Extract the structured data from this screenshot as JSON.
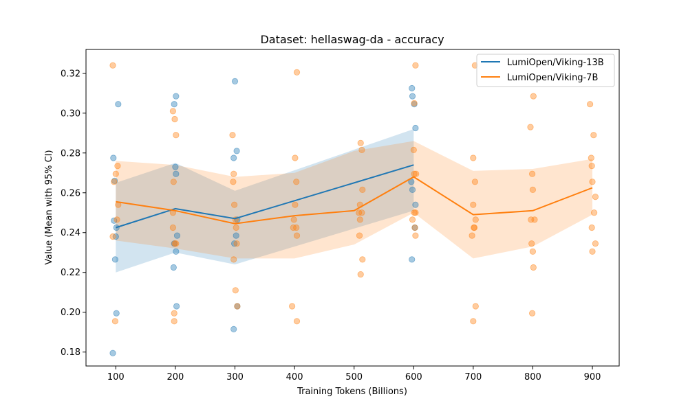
{
  "chart_data": {
    "type": "line",
    "title": "Dataset: hellaswag-da - accuracy",
    "xlabel": "Training Tokens (Billions)",
    "ylabel": "Value (Mean with 95% CI)",
    "xlim": [
      50,
      945
    ],
    "ylim": [
      0.173,
      0.332
    ],
    "xticks": [
      100,
      200,
      300,
      400,
      500,
      600,
      700,
      800,
      900
    ],
    "yticks": [
      0.18,
      0.2,
      0.22,
      0.24,
      0.26,
      0.28,
      0.3,
      0.32
    ],
    "grid": false,
    "legend": "top-right",
    "series": [
      {
        "name": "LumiOpen/Viking-13B",
        "color": "#1f77b4",
        "x": [
          100,
          200,
          300,
          600
        ],
        "mean": [
          0.2425,
          0.252,
          0.247,
          0.274
        ],
        "ci_low": [
          0.22,
          0.23,
          0.224,
          0.251
        ],
        "ci_high": [
          0.265,
          0.275,
          0.261,
          0.292
        ],
        "points": [
          [
            96,
            0.2775
          ],
          [
            98,
            0.266
          ],
          [
            97,
            0.246
          ],
          [
            100,
            0.238
          ],
          [
            101,
            0.2425
          ],
          [
            99,
            0.2265
          ],
          [
            101,
            0.1995
          ],
          [
            104,
            0.3045
          ],
          [
            95,
            0.1795
          ],
          [
            198,
            0.3045
          ],
          [
            201,
            0.3085
          ],
          [
            200,
            0.273
          ],
          [
            201,
            0.2695
          ],
          [
            203,
            0.2385
          ],
          [
            198,
            0.2345
          ],
          [
            201,
            0.2305
          ],
          [
            197,
            0.2225
          ],
          [
            202,
            0.203
          ],
          [
            300,
            0.316
          ],
          [
            303,
            0.281
          ],
          [
            298,
            0.2775
          ],
          [
            304,
            0.2465
          ],
          [
            302,
            0.2385
          ],
          [
            299,
            0.2345
          ],
          [
            304,
            0.203
          ],
          [
            298,
            0.1915
          ],
          [
            597,
            0.3125
          ],
          [
            598,
            0.3085
          ],
          [
            601,
            0.3045
          ],
          [
            603,
            0.2925
          ],
          [
            596,
            0.2655
          ],
          [
            598,
            0.2615
          ],
          [
            603,
            0.254
          ],
          [
            602,
            0.2425
          ],
          [
            597,
            0.2265
          ]
        ]
      },
      {
        "name": "LumiOpen/Viking-7B",
        "color": "#ff7f0e",
        "x": [
          100,
          200,
          300,
          400,
          500,
          600,
          700,
          800,
          900
        ],
        "mean": [
          0.2555,
          0.251,
          0.2445,
          0.2485,
          0.251,
          0.268,
          0.249,
          0.251,
          0.2625
        ],
        "ci_low": [
          0.236,
          0.232,
          0.227,
          0.227,
          0.234,
          0.25,
          0.227,
          0.233,
          0.249
        ],
        "ci_high": [
          0.276,
          0.274,
          0.268,
          0.27,
          0.281,
          0.286,
          0.271,
          0.272,
          0.277
        ],
        "points": [
          [
            95,
            0.324
          ],
          [
            103,
            0.2735
          ],
          [
            100,
            0.2695
          ],
          [
            97,
            0.2655
          ],
          [
            104,
            0.254
          ],
          [
            102,
            0.2465
          ],
          [
            95,
            0.238
          ],
          [
            99,
            0.1955
          ],
          [
            196,
            0.301
          ],
          [
            199,
            0.297
          ],
          [
            201,
            0.289
          ],
          [
            197,
            0.2655
          ],
          [
            196,
            0.25
          ],
          [
            196,
            0.2425
          ],
          [
            199,
            0.2345
          ],
          [
            201,
            0.2345
          ],
          [
            198,
            0.1995
          ],
          [
            198,
            0.1955
          ],
          [
            296,
            0.289
          ],
          [
            298,
            0.2695
          ],
          [
            297,
            0.2655
          ],
          [
            299,
            0.254
          ],
          [
            301,
            0.2465
          ],
          [
            302,
            0.2425
          ],
          [
            303,
            0.2345
          ],
          [
            298,
            0.2265
          ],
          [
            301,
            0.211
          ],
          [
            304,
            0.203
          ],
          [
            404,
            0.3205
          ],
          [
            401,
            0.2775
          ],
          [
            403,
            0.2655
          ],
          [
            401,
            0.254
          ],
          [
            399,
            0.2465
          ],
          [
            403,
            0.2425
          ],
          [
            398,
            0.2425
          ],
          [
            404,
            0.2385
          ],
          [
            396,
            0.203
          ],
          [
            404,
            0.1955
          ],
          [
            511,
            0.285
          ],
          [
            513,
            0.2815
          ],
          [
            514,
            0.2615
          ],
          [
            510,
            0.254
          ],
          [
            508,
            0.25
          ],
          [
            513,
            0.25
          ],
          [
            510,
            0.2465
          ],
          [
            509,
            0.2385
          ],
          [
            514,
            0.2265
          ],
          [
            511,
            0.219
          ],
          [
            603,
            0.324
          ],
          [
            601,
            0.305
          ],
          [
            600,
            0.2815
          ],
          [
            601,
            0.2695
          ],
          [
            604,
            0.2695
          ],
          [
            603,
            0.25
          ],
          [
            601,
            0.25
          ],
          [
            598,
            0.2465
          ],
          [
            602,
            0.2425
          ],
          [
            603,
            0.2385
          ],
          [
            703,
            0.324
          ],
          [
            700,
            0.2775
          ],
          [
            703,
            0.2655
          ],
          [
            700,
            0.254
          ],
          [
            704,
            0.2465
          ],
          [
            701,
            0.2425
          ],
          [
            702,
            0.2425
          ],
          [
            698,
            0.2385
          ],
          [
            704,
            0.203
          ],
          [
            700,
            0.1955
          ],
          [
            801,
            0.3085
          ],
          [
            796,
            0.293
          ],
          [
            799,
            0.2695
          ],
          [
            800,
            0.2615
          ],
          [
            797,
            0.2465
          ],
          [
            803,
            0.2465
          ],
          [
            798,
            0.2345
          ],
          [
            800,
            0.2305
          ],
          [
            801,
            0.2225
          ],
          [
            799,
            0.1995
          ],
          [
            896,
            0.3045
          ],
          [
            902,
            0.289
          ],
          [
            898,
            0.2775
          ],
          [
            899,
            0.2735
          ],
          [
            900,
            0.2655
          ],
          [
            905,
            0.258
          ],
          [
            903,
            0.25
          ],
          [
            899,
            0.2425
          ],
          [
            905,
            0.2345
          ],
          [
            900,
            0.2305
          ]
        ]
      }
    ]
  }
}
